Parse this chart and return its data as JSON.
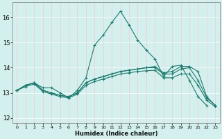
{
  "xlabel": "Humidex (Indice chaleur)",
  "background_color": "#d4f0ee",
  "grid_color": "#f5c8c8",
  "line_color": "#1a7a6e",
  "xlim": [
    -0.5,
    23.5
  ],
  "ylim": [
    11.8,
    16.6
  ],
  "xticks": [
    0,
    1,
    2,
    3,
    4,
    5,
    6,
    7,
    8,
    9,
    10,
    11,
    12,
    13,
    14,
    15,
    16,
    17,
    18,
    19,
    20,
    21,
    22,
    23
  ],
  "yticks": [
    12,
    13,
    14,
    15,
    16
  ],
  "series": [
    [
      13.1,
      13.3,
      13.4,
      13.2,
      13.2,
      13.0,
      12.8,
      13.1,
      13.6,
      14.9,
      15.3,
      15.8,
      16.25,
      15.7,
      15.1,
      14.7,
      14.35,
      13.65,
      14.05,
      14.1,
      13.5,
      12.85,
      12.5,
      null
    ],
    [
      13.1,
      13.3,
      13.4,
      13.1,
      13.0,
      12.9,
      12.85,
      13.0,
      13.4,
      13.55,
      13.65,
      13.75,
      13.85,
      13.9,
      13.95,
      14.0,
      14.05,
      13.8,
      13.85,
      14.05,
      14.05,
      13.85,
      12.85,
      12.5
    ],
    [
      13.1,
      13.3,
      13.4,
      13.1,
      13.0,
      12.9,
      12.85,
      13.0,
      13.4,
      13.55,
      13.65,
      13.75,
      13.85,
      13.9,
      13.95,
      14.0,
      14.0,
      13.75,
      13.75,
      13.95,
      14.0,
      13.5,
      12.8,
      12.5
    ],
    [
      13.1,
      13.25,
      13.35,
      13.05,
      12.95,
      12.85,
      12.8,
      12.95,
      13.3,
      13.45,
      13.55,
      13.65,
      13.75,
      13.8,
      13.85,
      13.88,
      13.9,
      13.6,
      13.6,
      13.75,
      13.75,
      13.3,
      12.7,
      12.45
    ]
  ]
}
